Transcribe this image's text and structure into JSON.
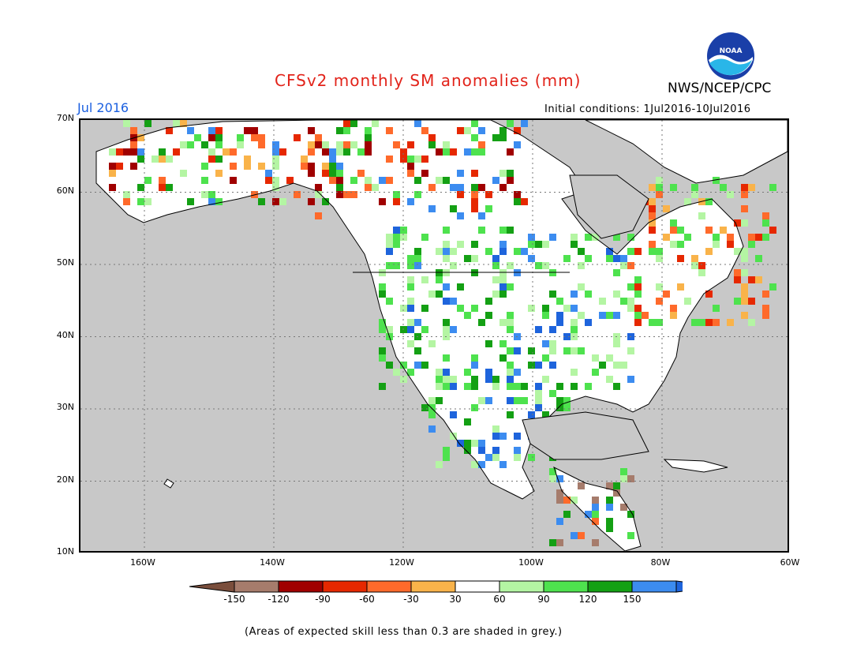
{
  "header": {
    "title": "CFSv2 monthly SM anomalies (mm)",
    "agency": "NWS/NCEP/CPC",
    "month": "Jul 2016",
    "initial_conditions": "Initial conditions: 1Jul2016-10Jul2016",
    "logo_text": "NOAA"
  },
  "map": {
    "lat_labels": [
      "70N",
      "60N",
      "50N",
      "40N",
      "30N",
      "20N",
      "10N"
    ],
    "lon_labels": [
      "160W",
      "140W",
      "120W",
      "100W",
      "80W",
      "60W"
    ],
    "colors": {
      "ocean": "#c8c8c8",
      "land": "#ffffff",
      "skill_grey": "#c8c8c8"
    }
  },
  "legend": {
    "ticks": [
      "-150",
      "-120",
      "-90",
      "-60",
      "-30",
      "30",
      "60",
      "90",
      "120",
      "150"
    ],
    "colors": [
      "#7a4e3c",
      "#a67c6c",
      "#a00000",
      "#e62800",
      "#ff6a2b",
      "#f9b34a",
      "#ffffff",
      "#b4f5a3",
      "#4ee24e",
      "#14a014",
      "#3c8cf0",
      "#1e64dc"
    ]
  },
  "footer": {
    "note": "(Areas of expected skill less than 0.3 are shaded in grey.)"
  }
}
